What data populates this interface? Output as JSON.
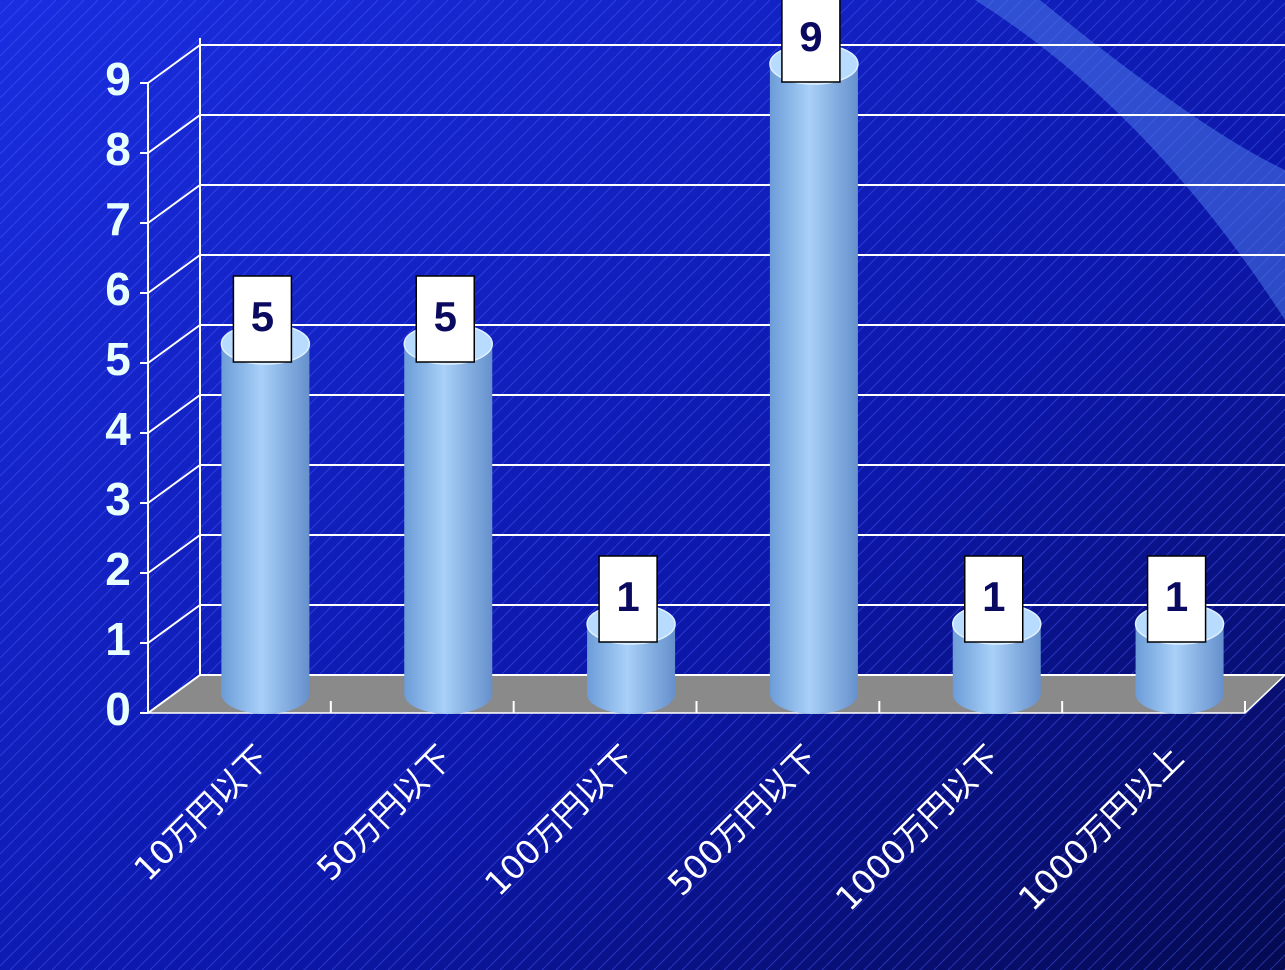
{
  "chart_data": {
    "type": "bar",
    "categories": [
      "10万円以下",
      "50万円以下",
      "100万円以下",
      "500万円以下",
      "1000万円以下",
      "1000万円以上"
    ],
    "values": [
      5,
      5,
      1,
      9,
      1,
      1
    ],
    "color": "#8fc0ee",
    "ylim": [
      0,
      9
    ],
    "yticks": [
      0,
      1,
      2,
      3,
      4,
      5,
      6,
      7,
      8,
      9
    ],
    "grid": true
  }
}
